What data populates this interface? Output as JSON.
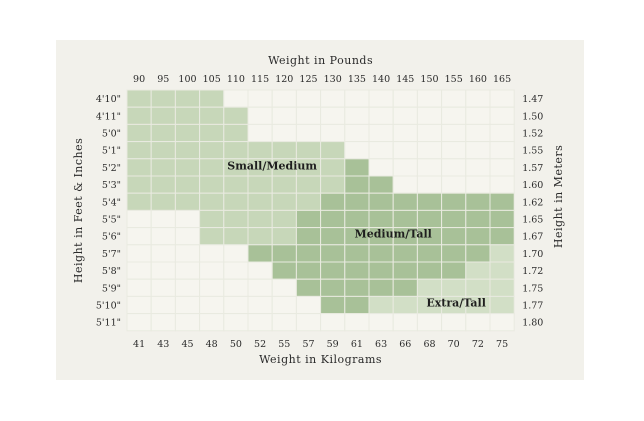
{
  "chart_data": {
    "type": "heatmap",
    "title": "",
    "x_top_label": "Weight in Pounds",
    "x_bottom_label": "Weight in Kilograms",
    "y_left_label": "Height in Feet & Inches",
    "y_right_label": "Height in Meters",
    "pounds": [
      "90",
      "95",
      "100",
      "105",
      "110",
      "115",
      "120",
      "125",
      "130",
      "135",
      "140",
      "145",
      "150",
      "155",
      "160",
      "165"
    ],
    "kilograms": [
      "41",
      "43",
      "45",
      "48",
      "50",
      "52",
      "55",
      "57",
      "59",
      "61",
      "63",
      "66",
      "68",
      "70",
      "72",
      "75"
    ],
    "heights_ft_in": [
      "4'10\"",
      "4'11\"",
      "5'0\"",
      "5'1\"",
      "5'2\"",
      "5'3\"",
      "5'4\"",
      "5'5\"",
      "5'6\"",
      "5'7\"",
      "5'8\"",
      "5'9\"",
      "5'10\"",
      "5'11\""
    ],
    "heights_m": [
      "1.47",
      "1.50",
      "1.52",
      "1.55",
      "1.57",
      "1.60",
      "1.62",
      "1.65",
      "1.67",
      "1.70",
      "1.72",
      "1.75",
      "1.77",
      "1.80"
    ],
    "size_legend": [
      "",
      "Small/Medium",
      "Medium/Tall",
      "Extra/Tall"
    ],
    "size_colors": [
      "#f6f5ef",
      "#c7d7b9",
      "#a8c198",
      "#d2dfc6"
    ],
    "grid": [
      [
        1,
        1,
        1,
        1,
        0,
        0,
        0,
        0,
        0,
        0,
        0,
        0,
        0,
        0,
        0,
        0
      ],
      [
        1,
        1,
        1,
        1,
        1,
        0,
        0,
        0,
        0,
        0,
        0,
        0,
        0,
        0,
        0,
        0
      ],
      [
        1,
        1,
        1,
        1,
        1,
        0,
        0,
        0,
        0,
        0,
        0,
        0,
        0,
        0,
        0,
        0
      ],
      [
        1,
        1,
        1,
        1,
        1,
        1,
        1,
        1,
        1,
        0,
        0,
        0,
        0,
        0,
        0,
        0
      ],
      [
        1,
        1,
        1,
        1,
        1,
        1,
        1,
        1,
        1,
        2,
        0,
        0,
        0,
        0,
        0,
        0
      ],
      [
        1,
        1,
        1,
        1,
        1,
        1,
        1,
        1,
        1,
        2,
        2,
        0,
        0,
        0,
        0,
        0
      ],
      [
        1,
        1,
        1,
        1,
        1,
        1,
        1,
        1,
        2,
        2,
        2,
        2,
        2,
        2,
        2,
        2
      ],
      [
        0,
        0,
        0,
        1,
        1,
        1,
        1,
        2,
        2,
        2,
        2,
        2,
        2,
        2,
        2,
        2
      ],
      [
        0,
        0,
        0,
        1,
        1,
        1,
        1,
        2,
        2,
        2,
        2,
        2,
        2,
        2,
        2,
        2
      ],
      [
        0,
        0,
        0,
        0,
        0,
        2,
        2,
        2,
        2,
        2,
        2,
        2,
        2,
        2,
        2,
        3
      ],
      [
        0,
        0,
        0,
        0,
        0,
        0,
        2,
        2,
        2,
        2,
        2,
        2,
        2,
        2,
        3,
        3
      ],
      [
        0,
        0,
        0,
        0,
        0,
        0,
        0,
        2,
        2,
        2,
        2,
        2,
        3,
        3,
        3,
        3
      ],
      [
        0,
        0,
        0,
        0,
        0,
        0,
        0,
        0,
        2,
        2,
        3,
        3,
        3,
        3,
        3,
        3
      ],
      [
        0,
        0,
        0,
        0,
        0,
        0,
        0,
        0,
        0,
        0,
        0,
        0,
        0,
        0,
        0,
        0
      ]
    ],
    "region_labels": [
      {
        "text": "Small/Medium",
        "col": 6,
        "row": 4.4
      },
      {
        "text": "Medium/Tall",
        "col": 11,
        "row": 8.35
      },
      {
        "text": "Extra/Tall",
        "col": 13.6,
        "row": 12.35
      }
    ]
  }
}
